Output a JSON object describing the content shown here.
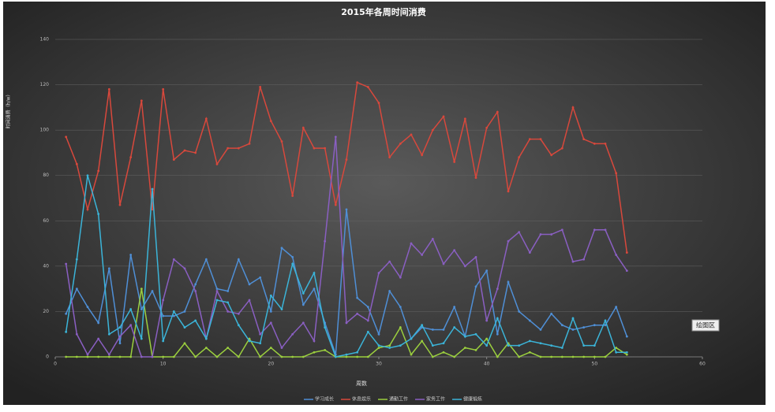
{
  "chart_data": {
    "type": "line",
    "title": "2015年各周时间消费",
    "x_label": "周数",
    "y_label": "时间消费（h/w）",
    "tooltip": "绘图区",
    "x": [
      1,
      2,
      3,
      4,
      5,
      6,
      7,
      8,
      9,
      10,
      11,
      12,
      13,
      14,
      15,
      16,
      17,
      18,
      19,
      20,
      21,
      22,
      23,
      24,
      25,
      26,
      27,
      28,
      29,
      30,
      31,
      32,
      33,
      34,
      35,
      36,
      37,
      38,
      39,
      40,
      41,
      42,
      43,
      44,
      45,
      46,
      47,
      48,
      49,
      50,
      51,
      52,
      53
    ],
    "xlim": [
      0,
      60
    ],
    "xticks": [
      0,
      10,
      20,
      30,
      40,
      50,
      60
    ],
    "ylim": [
      0,
      140
    ],
    "yticks": [
      0,
      20,
      40,
      60,
      80,
      100,
      120,
      140
    ],
    "grid": true,
    "series": [
      {
        "name": "学习成长",
        "color": "#4f8fd6",
        "values": [
          19,
          30,
          22,
          15,
          39,
          6,
          45,
          21,
          29,
          18,
          18,
          20,
          32,
          43,
          30,
          29,
          43,
          32,
          35,
          20,
          48,
          44,
          23,
          30,
          15,
          1,
          65,
          26,
          22,
          10,
          29,
          22,
          8,
          13,
          12,
          12,
          22,
          9,
          31,
          38,
          10,
          33,
          20,
          16,
          12,
          19,
          14,
          12,
          13,
          14,
          14,
          22,
          9
        ]
      },
      {
        "name": "休息娱乐",
        "color": "#d8483c",
        "values": [
          97,
          85,
          65,
          82,
          118,
          67,
          88,
          113,
          65,
          118,
          87,
          91,
          90,
          105,
          85,
          92,
          92,
          94,
          119,
          104,
          95,
          71,
          101,
          92,
          92,
          67,
          87,
          121,
          119,
          112,
          88,
          94,
          98,
          89,
          100,
          106,
          86,
          105,
          79,
          101,
          108,
          73,
          88,
          96,
          96,
          89,
          92,
          110,
          96,
          94,
          94,
          81,
          46
        ]
      },
      {
        "name": "通勤工作",
        "color": "#9bcf3e",
        "values": [
          0,
          0,
          0,
          0,
          0,
          0,
          0,
          30,
          0,
          0,
          0,
          6,
          0,
          4,
          0,
          4,
          0,
          8,
          0,
          4,
          0,
          0,
          0,
          2,
          3,
          0,
          0,
          0,
          0,
          4,
          5,
          13,
          1,
          7,
          0,
          2,
          0,
          4,
          3,
          8,
          0,
          6,
          0,
          2,
          0,
          0,
          0,
          0,
          0,
          0,
          0,
          4,
          1
        ]
      },
      {
        "name": "家务工作",
        "color": "#8a5fc2",
        "values": [
          41,
          10,
          1,
          8,
          1,
          9,
          14,
          0,
          0,
          25,
          43,
          39,
          29,
          8,
          29,
          20,
          19,
          25,
          10,
          15,
          4,
          10,
          15,
          7,
          51,
          97,
          15,
          19,
          16,
          37,
          42,
          35,
          50,
          45,
          52,
          41,
          47,
          40,
          44,
          16,
          30,
          51,
          55,
          46,
          54,
          54,
          56,
          42,
          43,
          56,
          56,
          45,
          38
        ]
      },
      {
        "name": "健康锻炼",
        "color": "#3bb4d8",
        "values": [
          11,
          43,
          80,
          63,
          10,
          13,
          21,
          8,
          74,
          7,
          20,
          13,
          16,
          8,
          25,
          24,
          14,
          7,
          6,
          27,
          21,
          41,
          28,
          37,
          13,
          0,
          1,
          2,
          11,
          5,
          4,
          5,
          8,
          14,
          5,
          6,
          13,
          9,
          10,
          5,
          17,
          5,
          5,
          7,
          6,
          5,
          4,
          17,
          5,
          5,
          16,
          2,
          2
        ]
      }
    ]
  }
}
